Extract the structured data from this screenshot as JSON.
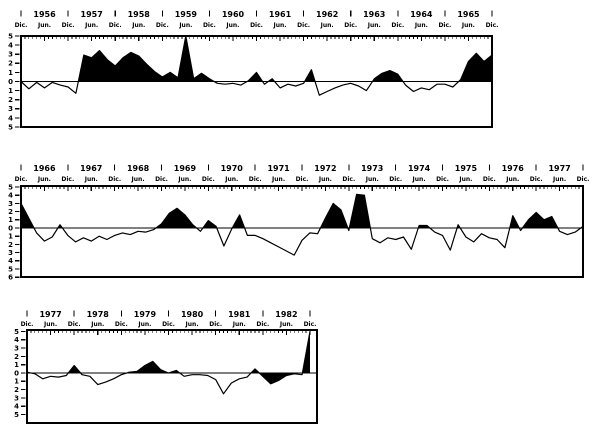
{
  "figure": {
    "background": "#ffffff",
    "ink": "#000000"
  },
  "chart_data": {
    "type": "area",
    "title": "",
    "grid": false,
    "legend": false,
    "fill_rule": "positive anomalies filled black; one negative segment in panel 3 filled black",
    "month_label_december": "Dic.",
    "month_label_june": "Jun.",
    "x_tick_interval_months": 1,
    "x_label_interval_months": 6,
    "panels": [
      {
        "name": "panel-1956-1965",
        "start": "Dic. 1955",
        "end": "Dic. 1965",
        "years": [
          1956,
          1957,
          1958,
          1959,
          1960,
          1961,
          1962,
          1963,
          1964,
          1965
        ],
        "ylim": [
          -5,
          5
        ],
        "yticks": [
          5,
          4,
          3,
          2,
          1,
          0,
          -1,
          -2,
          -3,
          -4,
          -5
        ],
        "step_months": 2,
        "values": [
          0.0,
          -0.8,
          -0.1,
          -0.7,
          -0.1,
          -0.4,
          -0.6,
          -1.3,
          2.9,
          2.6,
          3.4,
          2.4,
          1.7,
          2.6,
          3.2,
          2.8,
          1.9,
          1.1,
          0.5,
          1.0,
          0.4,
          5.0,
          0.3,
          0.9,
          0.3,
          -0.2,
          -0.3,
          -0.2,
          -0.4,
          0.1,
          1.0,
          -0.3,
          0.3,
          -0.7,
          -0.3,
          -0.5,
          -0.2,
          1.3,
          -1.5,
          -1.1,
          -0.7,
          -0.4,
          -0.2,
          -0.5,
          -1.0,
          0.3,
          0.9,
          1.2,
          0.8,
          -0.4,
          -1.1,
          -0.7,
          -0.9,
          -0.3,
          -0.3,
          -0.6,
          0.2,
          2.2,
          3.1,
          2.2,
          2.9
        ],
        "neg_fill_month_ranges": []
      },
      {
        "name": "panel-1966-1977",
        "start": "Dic. 1965",
        "end": "Dic. 1977",
        "years": [
          1966,
          1967,
          1968,
          1969,
          1970,
          1971,
          1972,
          1973,
          1974,
          1975,
          1976,
          1977
        ],
        "ylim": [
          -6,
          5
        ],
        "yticks": [
          5,
          4,
          3,
          2,
          1,
          0,
          -1,
          -2,
          -3,
          -4,
          -5,
          -6
        ],
        "step_months": 2,
        "values": [
          3.0,
          1.2,
          -0.6,
          -1.6,
          -1.1,
          0.4,
          -0.9,
          -1.7,
          -1.2,
          -1.6,
          -1.0,
          -1.4,
          -0.9,
          -0.6,
          -0.8,
          -0.4,
          -0.5,
          -0.2,
          0.5,
          1.8,
          2.4,
          1.6,
          0.4,
          -0.4,
          0.9,
          0.2,
          -2.2,
          -0.1,
          1.6,
          -0.9,
          -0.9,
          -1.3,
          -1.8,
          -2.3,
          -2.8,
          -3.3,
          -1.5,
          -0.6,
          -0.7,
          1.2,
          3.0,
          2.2,
          -0.3,
          4.1,
          4.0,
          -1.3,
          -1.8,
          -1.2,
          -1.4,
          -1.1,
          -2.6,
          0.3,
          0.3,
          -0.5,
          -0.9,
          -2.7,
          0.4,
          -1.1,
          -1.7,
          -0.7,
          -1.2,
          -1.4,
          -2.4,
          1.5,
          -0.3,
          1.0,
          1.9,
          1.0,
          1.4,
          -0.4,
          -0.8,
          -0.5,
          0.2
        ],
        "neg_fill_month_ranges": []
      },
      {
        "name": "panel-1977-1982",
        "start": "Dic. 1976",
        "end": "Dic. 1982",
        "years": [
          1977,
          1978,
          1979,
          1980,
          1981,
          1982
        ],
        "ylim": [
          -6,
          5
        ],
        "yticks": [
          5,
          4,
          3,
          2,
          1,
          0,
          -1,
          -2,
          -3,
          -4,
          -5
        ],
        "step_months": 2,
        "values": [
          0.1,
          -0.1,
          -0.7,
          -0.4,
          -0.5,
          -0.3,
          0.9,
          -0.2,
          -0.4,
          -1.4,
          -1.1,
          -0.7,
          -0.2,
          0.1,
          0.2,
          0.9,
          1.4,
          0.4,
          0.0,
          0.3,
          -0.4,
          -0.2,
          -0.2,
          -0.3,
          -0.8,
          -2.5,
          -1.2,
          -0.7,
          -0.5,
          0.5,
          -0.4,
          -1.3,
          -0.9,
          -0.3,
          -0.1,
          -0.2,
          5.0
        ],
        "neg_fill_month_ranges": [
          [
            58,
            68
          ]
        ]
      }
    ]
  }
}
